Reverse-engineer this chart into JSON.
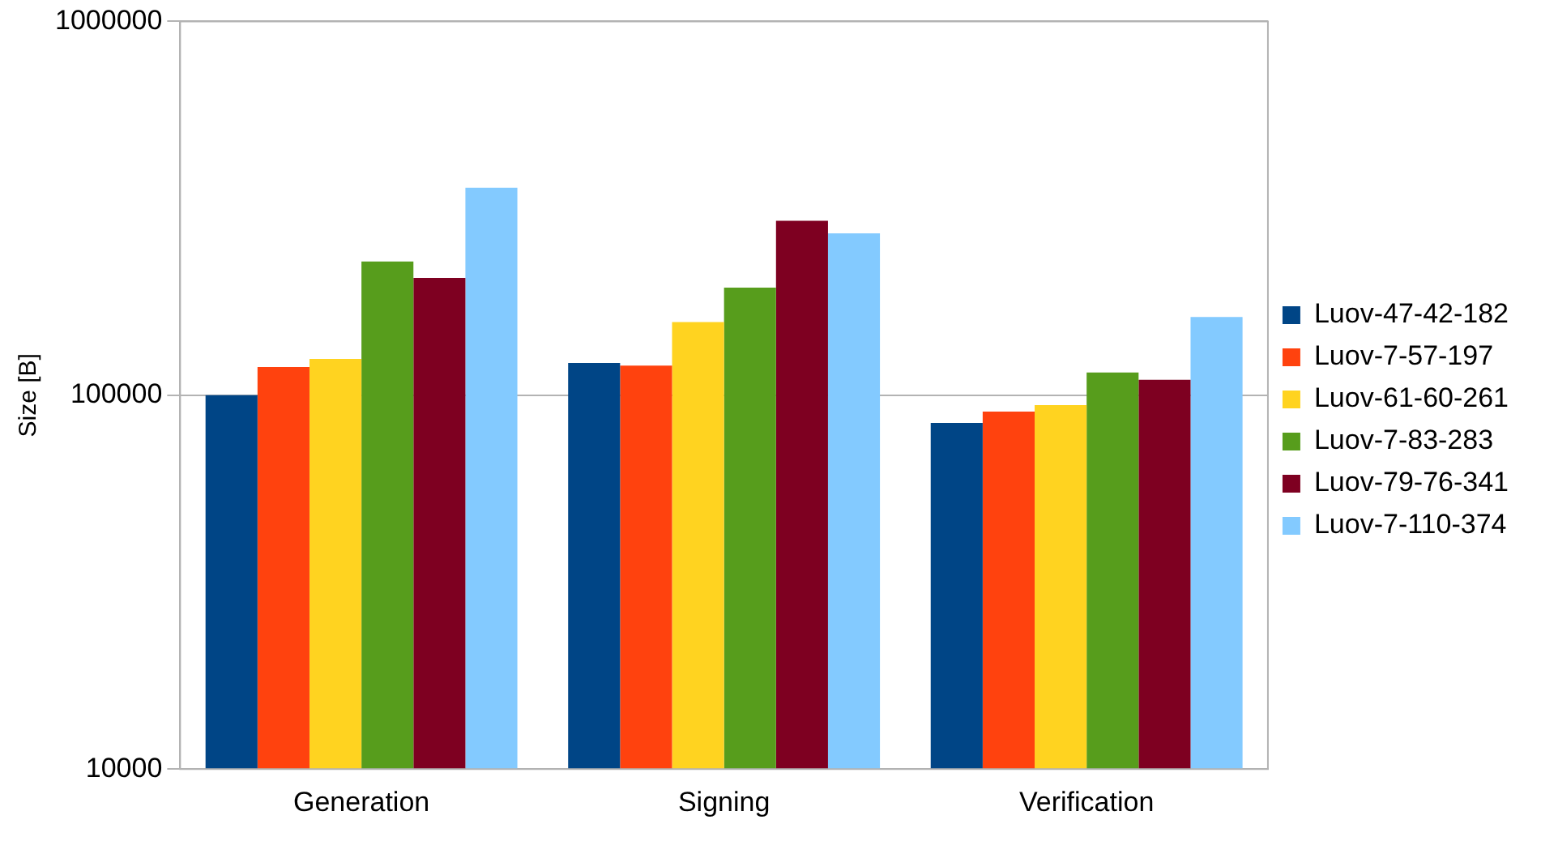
{
  "chart_data": {
    "type": "bar",
    "ylabel": "Size [B]",
    "categories": [
      "Generation",
      "Signing",
      "Verification"
    ],
    "series": [
      {
        "name": "Luov-47-42-182",
        "color": "#004586",
        "values": [
          100000,
          122000,
          84300
        ]
      },
      {
        "name": "Luov-7-57-197",
        "color": "#ff420e",
        "values": [
          119000,
          120000,
          90400
        ]
      },
      {
        "name": "Luov-61-60-261",
        "color": "#ffd320",
        "values": [
          125000,
          157000,
          94100
        ]
      },
      {
        "name": "Luov-7-83-283",
        "color": "#579d1c",
        "values": [
          228000,
          194000,
          115000
        ]
      },
      {
        "name": "Luov-79-76-341",
        "color": "#7e0021",
        "values": [
          206000,
          293000,
          110000
        ]
      },
      {
        "name": "Luov-7-110-374",
        "color": "#83caff",
        "values": [
          359000,
          271000,
          162000
        ]
      }
    ],
    "log": true,
    "ylim": [
      10000,
      1000000
    ],
    "yticks": [
      10000,
      100000,
      1000000
    ],
    "grid": "y",
    "legend": "right"
  }
}
